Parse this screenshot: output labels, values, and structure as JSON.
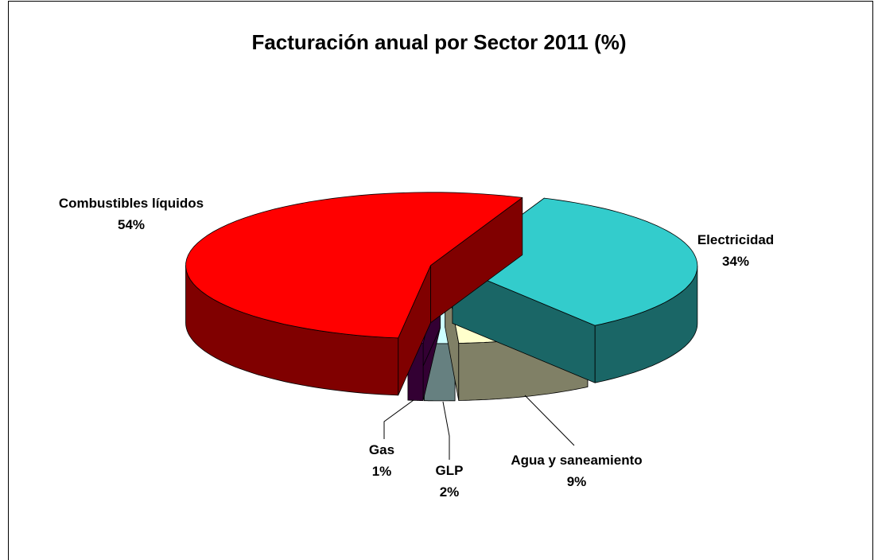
{
  "chart_data": {
    "type": "pie",
    "title": "Facturación anual por Sector 2011 (%)",
    "categories": [
      "Electricidad",
      "Agua y saneamiento",
      "GLP",
      "Gas",
      "Combustibles líquidos"
    ],
    "values": [
      34,
      9,
      2,
      1,
      54
    ],
    "value_labels": [
      "34%",
      "9%",
      "2%",
      "1%",
      "54%"
    ],
    "colors": [
      "#33cccc",
      "#ffffcc",
      "#ccffff",
      "#660066",
      "#ff0000"
    ]
  }
}
